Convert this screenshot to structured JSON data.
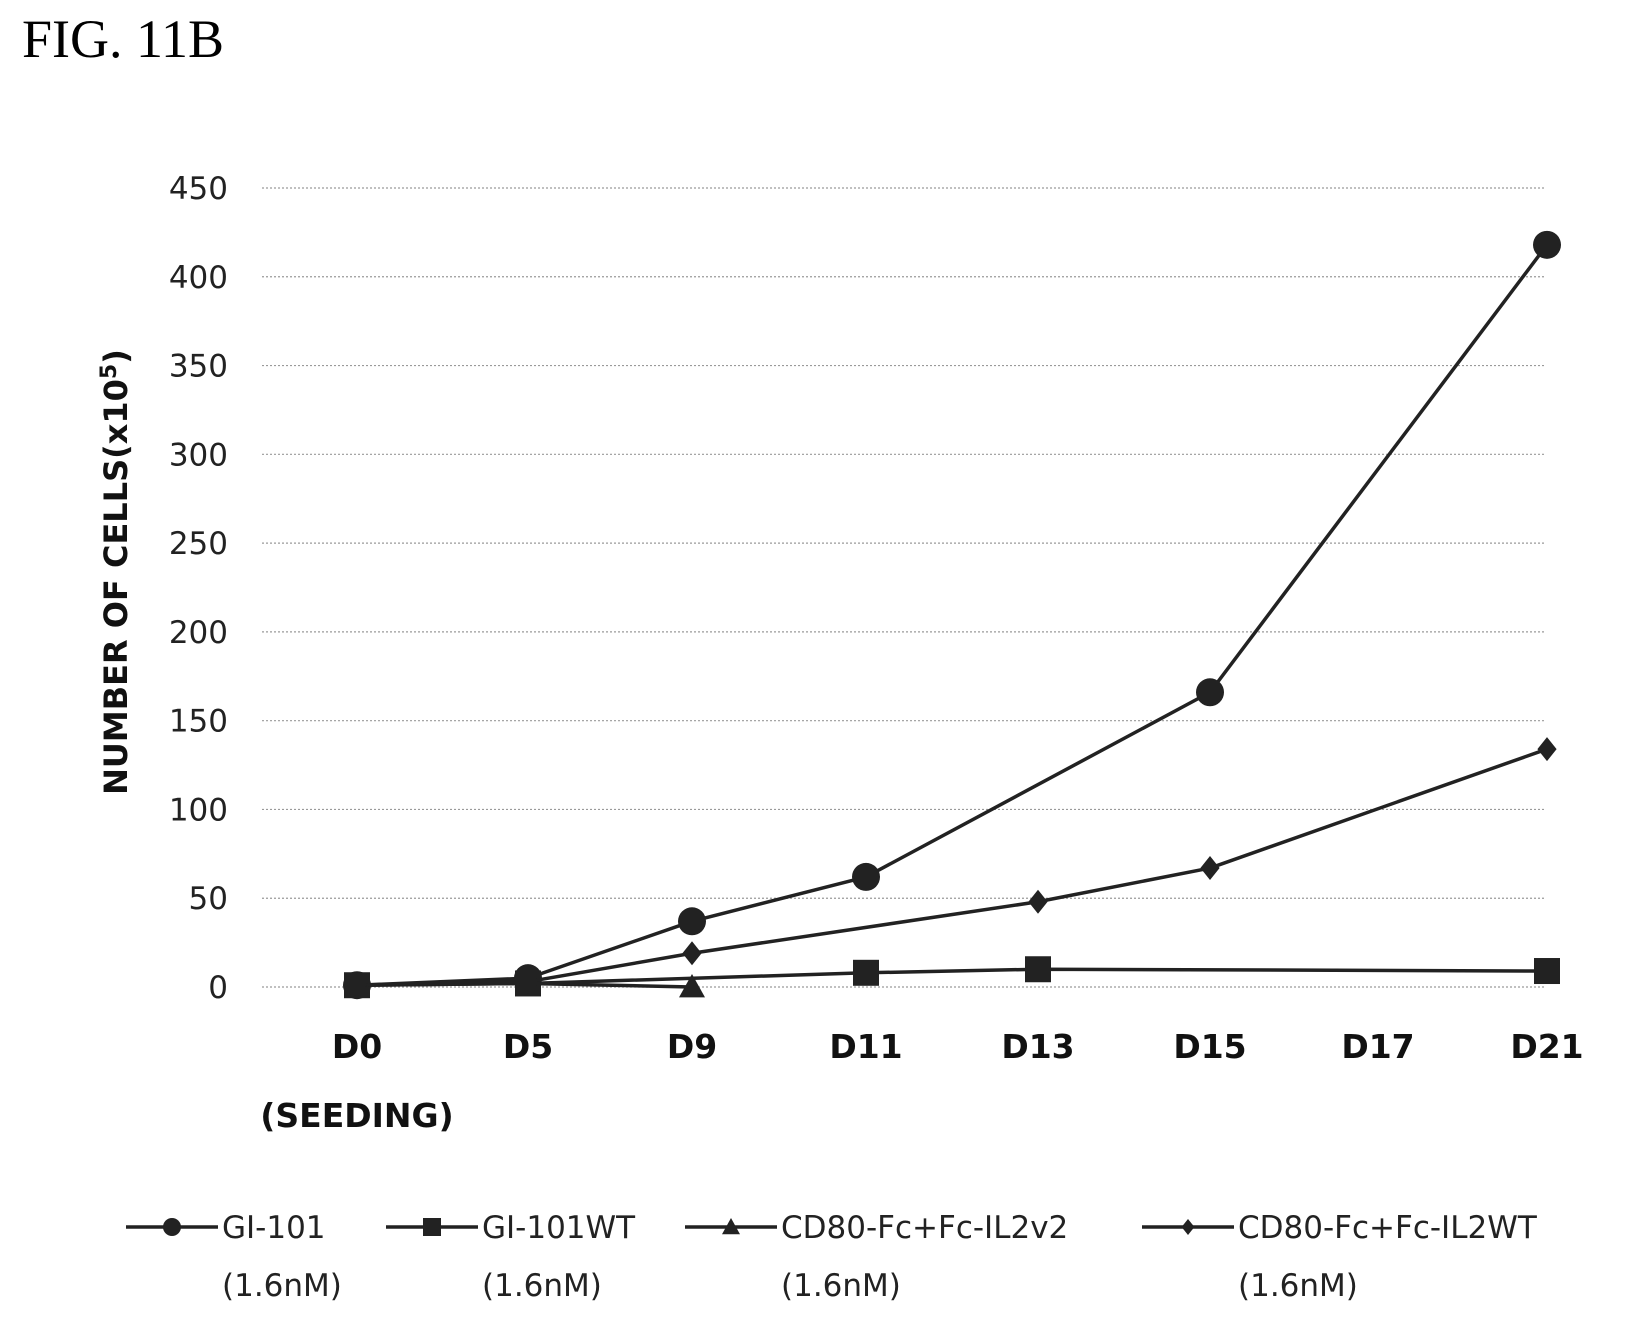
{
  "figure_label": "FIG. 11B",
  "chart_data": {
    "type": "line",
    "title": "",
    "ylabel": "NUMBER OF CELLS(x10",
    "ylabel_sup": "5",
    "ylabel_close": ")",
    "ylim": [
      0,
      450
    ],
    "yticks": [
      0,
      50,
      100,
      150,
      200,
      250,
      300,
      350,
      400,
      450
    ],
    "grid": true,
    "legend_position": "bottom",
    "categories": [
      {
        "label": "D0",
        "sublabel": "(SEEDING)"
      },
      {
        "label": "D5",
        "sublabel": ""
      },
      {
        "label": "D9",
        "sublabel": ""
      },
      {
        "label": "D11",
        "sublabel": ""
      },
      {
        "label": "D13",
        "sublabel": ""
      },
      {
        "label": "D15",
        "sublabel": ""
      },
      {
        "label": "D17",
        "sublabel": ""
      },
      {
        "label": "D21",
        "sublabel": ""
      }
    ],
    "series": [
      {
        "name": "GI-101",
        "sub": "(1.6nM)",
        "marker": "circle",
        "values": [
          1,
          5,
          37,
          62,
          null,
          166,
          null,
          418
        ]
      },
      {
        "name": "GI-101WT",
        "sub": "(1.6nM)",
        "marker": "square",
        "values": [
          1,
          2,
          null,
          8,
          10,
          null,
          null,
          9
        ]
      },
      {
        "name": "CD80-Fc+Fc-IL2v2",
        "sub": "(1.6nM)",
        "marker": "triangle",
        "values": [
          1,
          2,
          0,
          null,
          null,
          null,
          null,
          null
        ]
      },
      {
        "name": "CD80-Fc+Fc-IL2WT",
        "sub": "(1.6nM)",
        "marker": "diamond",
        "values": [
          1,
          3,
          19,
          null,
          48,
          67,
          null,
          134
        ]
      }
    ],
    "color": "#222222"
  }
}
